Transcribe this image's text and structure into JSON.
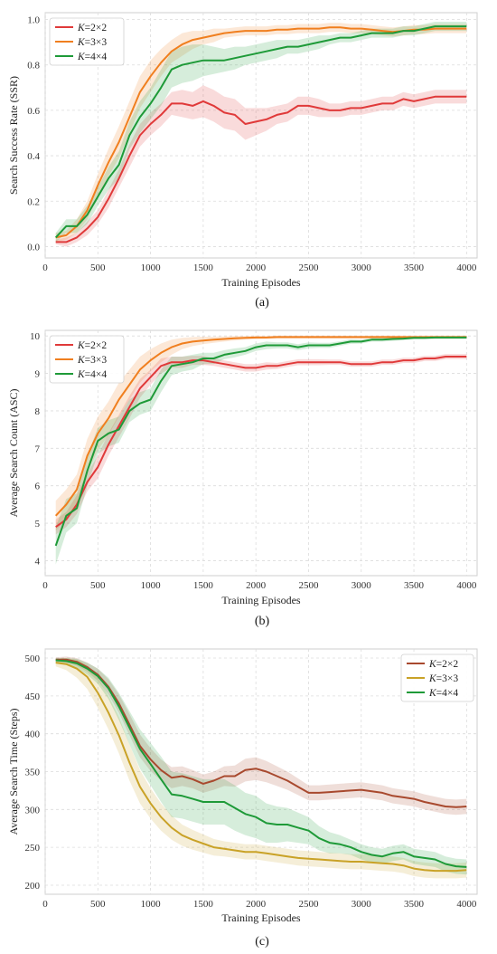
{
  "chart_data": [
    {
      "type": "line",
      "panel_label": "(a)",
      "xlabel": "Training Episodes",
      "ylabel": "Search Success Rate (SSR)",
      "xlim": [
        0,
        4100
      ],
      "ylim": [
        -0.05,
        1.03
      ],
      "xticks": [
        0,
        500,
        1000,
        1500,
        2000,
        2500,
        3000,
        3500,
        4000
      ],
      "yticks": [
        0.0,
        0.2,
        0.4,
        0.6,
        0.8,
        1.0
      ],
      "ytick_labels": [
        "0.0",
        "0.2",
        "0.4",
        "0.6",
        "0.8",
        "1.0"
      ],
      "grid": true,
      "legend_position": "top-left",
      "x": [
        100,
        200,
        300,
        400,
        500,
        600,
        700,
        800,
        900,
        1000,
        1100,
        1200,
        1300,
        1400,
        1500,
        1600,
        1700,
        1800,
        1900,
        2000,
        2100,
        2200,
        2300,
        2400,
        2500,
        2600,
        2700,
        2800,
        2900,
        3000,
        3100,
        3200,
        3300,
        3400,
        3500,
        3600,
        3700,
        3800,
        3900,
        4000
      ],
      "series": [
        {
          "name": "K=2×2",
          "k_label": "K",
          "k_value": "=2×2",
          "color": "#e03a3a",
          "values": [
            0.02,
            0.02,
            0.04,
            0.08,
            0.13,
            0.21,
            0.3,
            0.4,
            0.49,
            0.54,
            0.58,
            0.63,
            0.63,
            0.62,
            0.64,
            0.62,
            0.59,
            0.58,
            0.54,
            0.55,
            0.56,
            0.58,
            0.59,
            0.62,
            0.62,
            0.61,
            0.6,
            0.6,
            0.61,
            0.61,
            0.62,
            0.63,
            0.63,
            0.65,
            0.64,
            0.65,
            0.66,
            0.66,
            0.66,
            0.66
          ],
          "band": [
            0.01,
            0.02,
            0.02,
            0.03,
            0.03,
            0.04,
            0.04,
            0.05,
            0.05,
            0.05,
            0.05,
            0.05,
            0.06,
            0.06,
            0.07,
            0.07,
            0.07,
            0.07,
            0.07,
            0.06,
            0.05,
            0.04,
            0.04,
            0.04,
            0.04,
            0.04,
            0.03,
            0.03,
            0.03,
            0.03,
            0.03,
            0.03,
            0.03,
            0.03,
            0.03,
            0.03,
            0.03,
            0.03,
            0.03,
            0.03
          ]
        },
        {
          "name": "K=3×3",
          "k_label": "K",
          "k_value": "=3×3",
          "color": "#f07f1f",
          "values": [
            0.04,
            0.05,
            0.09,
            0.16,
            0.27,
            0.37,
            0.46,
            0.57,
            0.68,
            0.75,
            0.81,
            0.86,
            0.89,
            0.91,
            0.92,
            0.93,
            0.94,
            0.945,
            0.95,
            0.95,
            0.95,
            0.955,
            0.955,
            0.96,
            0.96,
            0.96,
            0.965,
            0.965,
            0.96,
            0.96,
            0.955,
            0.95,
            0.945,
            0.95,
            0.955,
            0.955,
            0.96,
            0.96,
            0.96,
            0.96
          ],
          "band": [
            0.02,
            0.02,
            0.03,
            0.04,
            0.05,
            0.06,
            0.07,
            0.07,
            0.07,
            0.07,
            0.06,
            0.05,
            0.05,
            0.04,
            0.03,
            0.03,
            0.02,
            0.02,
            0.02,
            0.02,
            0.02,
            0.02,
            0.02,
            0.02,
            0.02,
            0.02,
            0.02,
            0.02,
            0.02,
            0.02,
            0.02,
            0.02,
            0.02,
            0.02,
            0.02,
            0.02,
            0.02,
            0.02,
            0.02,
            0.02
          ]
        },
        {
          "name": "K=4×4",
          "k_label": "K",
          "k_value": "=4×4",
          "color": "#1e9a38",
          "values": [
            0.04,
            0.09,
            0.09,
            0.14,
            0.22,
            0.3,
            0.36,
            0.49,
            0.57,
            0.63,
            0.7,
            0.78,
            0.8,
            0.81,
            0.82,
            0.82,
            0.82,
            0.83,
            0.84,
            0.85,
            0.86,
            0.87,
            0.88,
            0.88,
            0.89,
            0.9,
            0.91,
            0.92,
            0.92,
            0.93,
            0.94,
            0.94,
            0.94,
            0.95,
            0.95,
            0.96,
            0.97,
            0.97,
            0.97,
            0.97
          ],
          "band": [
            0.02,
            0.03,
            0.03,
            0.04,
            0.04,
            0.05,
            0.06,
            0.06,
            0.07,
            0.07,
            0.08,
            0.08,
            0.08,
            0.08,
            0.07,
            0.06,
            0.05,
            0.05,
            0.04,
            0.04,
            0.04,
            0.04,
            0.03,
            0.03,
            0.03,
            0.03,
            0.02,
            0.02,
            0.02,
            0.02,
            0.02,
            0.02,
            0.02,
            0.02,
            0.02,
            0.02,
            0.02,
            0.02,
            0.02,
            0.02
          ]
        }
      ]
    },
    {
      "type": "line",
      "panel_label": "(b)",
      "xlabel": "Training Episodes",
      "ylabel": "Average Search Count (ASC)",
      "xlim": [
        0,
        4100
      ],
      "ylim": [
        3.6,
        10.15
      ],
      "xticks": [
        0,
        500,
        1000,
        1500,
        2000,
        2500,
        3000,
        3500,
        4000
      ],
      "yticks": [
        4,
        5,
        6,
        7,
        8,
        9,
        10
      ],
      "ytick_labels": [
        "4",
        "5",
        "6",
        "7",
        "8",
        "9",
        "10"
      ],
      "grid": true,
      "legend_position": "top-left",
      "x": [
        100,
        200,
        300,
        400,
        500,
        600,
        700,
        800,
        900,
        1000,
        1100,
        1200,
        1300,
        1400,
        1500,
        1600,
        1700,
        1800,
        1900,
        2000,
        2100,
        2200,
        2300,
        2400,
        2500,
        2600,
        2700,
        2800,
        2900,
        3000,
        3100,
        3200,
        3300,
        3400,
        3500,
        3600,
        3700,
        3800,
        3900,
        4000
      ],
      "series": [
        {
          "name": "K=2×2",
          "k_label": "K",
          "k_value": "=2×2",
          "color": "#e03a3a",
          "values": [
            4.9,
            5.1,
            5.5,
            6.1,
            6.5,
            7.1,
            7.6,
            8.1,
            8.6,
            8.9,
            9.2,
            9.3,
            9.3,
            9.35,
            9.35,
            9.3,
            9.25,
            9.2,
            9.15,
            9.15,
            9.2,
            9.2,
            9.25,
            9.3,
            9.3,
            9.3,
            9.3,
            9.3,
            9.25,
            9.25,
            9.25,
            9.3,
            9.3,
            9.35,
            9.35,
            9.4,
            9.4,
            9.45,
            9.45,
            9.45
          ],
          "band": [
            0.2,
            0.2,
            0.25,
            0.25,
            0.3,
            0.3,
            0.3,
            0.3,
            0.25,
            0.2,
            0.2,
            0.15,
            0.15,
            0.12,
            0.12,
            0.1,
            0.1,
            0.1,
            0.1,
            0.1,
            0.1,
            0.08,
            0.08,
            0.08,
            0.08,
            0.08,
            0.07,
            0.07,
            0.07,
            0.07,
            0.07,
            0.07,
            0.07,
            0.07,
            0.07,
            0.07,
            0.07,
            0.07,
            0.07,
            0.07
          ]
        },
        {
          "name": "K=3×3",
          "k_label": "K",
          "k_value": "=3×3",
          "color": "#f07f1f",
          "values": [
            5.2,
            5.5,
            5.9,
            6.8,
            7.4,
            7.8,
            8.3,
            8.7,
            9.1,
            9.35,
            9.55,
            9.7,
            9.8,
            9.85,
            9.88,
            9.9,
            9.92,
            9.94,
            9.95,
            9.96,
            9.96,
            9.97,
            9.97,
            9.97,
            9.97,
            9.97,
            9.97,
            9.97,
            9.97,
            9.97,
            9.97,
            9.97,
            9.97,
            9.97,
            9.97,
            9.97,
            9.97,
            9.97,
            9.97,
            9.97
          ],
          "band": [
            0.4,
            0.4,
            0.4,
            0.45,
            0.45,
            0.45,
            0.45,
            0.4,
            0.35,
            0.3,
            0.25,
            0.2,
            0.15,
            0.12,
            0.1,
            0.08,
            0.07,
            0.06,
            0.05,
            0.05,
            0.04,
            0.04,
            0.04,
            0.04,
            0.04,
            0.04,
            0.04,
            0.04,
            0.04,
            0.04,
            0.04,
            0.04,
            0.04,
            0.04,
            0.04,
            0.04,
            0.04,
            0.04,
            0.04,
            0.04
          ]
        },
        {
          "name": "K=4×4",
          "k_label": "K",
          "k_value": "=4×4",
          "color": "#1e9a38",
          "values": [
            4.4,
            5.2,
            5.4,
            6.4,
            7.2,
            7.4,
            7.5,
            8.0,
            8.2,
            8.3,
            8.8,
            9.2,
            9.25,
            9.3,
            9.4,
            9.4,
            9.5,
            9.55,
            9.6,
            9.7,
            9.75,
            9.75,
            9.75,
            9.7,
            9.75,
            9.75,
            9.75,
            9.8,
            9.85,
            9.85,
            9.9,
            9.9,
            9.92,
            9.93,
            9.95,
            9.95,
            9.96,
            9.96,
            9.96,
            9.96
          ],
          "band": [
            0.5,
            0.45,
            0.4,
            0.4,
            0.35,
            0.35,
            0.35,
            0.3,
            0.3,
            0.3,
            0.3,
            0.25,
            0.2,
            0.2,
            0.15,
            0.15,
            0.12,
            0.12,
            0.1,
            0.1,
            0.1,
            0.08,
            0.08,
            0.08,
            0.08,
            0.07,
            0.07,
            0.06,
            0.06,
            0.05,
            0.05,
            0.05,
            0.05,
            0.04,
            0.04,
            0.04,
            0.04,
            0.04,
            0.04,
            0.04
          ]
        }
      ]
    },
    {
      "type": "line",
      "panel_label": "(c)",
      "xlabel": "Training Episodes",
      "ylabel": "Average Search Time (Steps)",
      "xlim": [
        0,
        4100
      ],
      "ylim": [
        188,
        512
      ],
      "xticks": [
        0,
        500,
        1000,
        1500,
        2000,
        2500,
        3000,
        3500,
        4000
      ],
      "yticks": [
        200,
        250,
        300,
        350,
        400,
        450,
        500
      ],
      "ytick_labels": [
        "200",
        "250",
        "300",
        "350",
        "400",
        "450",
        "500"
      ],
      "grid": true,
      "legend_position": "top-right",
      "x": [
        100,
        200,
        300,
        400,
        500,
        600,
        700,
        800,
        900,
        1000,
        1100,
        1200,
        1300,
        1400,
        1500,
        1600,
        1700,
        1800,
        1900,
        2000,
        2100,
        2200,
        2300,
        2400,
        2500,
        2600,
        2700,
        2800,
        2900,
        3000,
        3100,
        3200,
        3300,
        3400,
        3500,
        3600,
        3700,
        3800,
        3900,
        4000
      ],
      "series": [
        {
          "name": "K=2×2",
          "k_label": "K",
          "k_value": "=2×2",
          "color": "#a8492e",
          "values": [
            498,
            498,
            495,
            488,
            478,
            462,
            440,
            412,
            384,
            366,
            352,
            342,
            344,
            340,
            334,
            338,
            344,
            344,
            352,
            354,
            350,
            344,
            338,
            330,
            322,
            322,
            323,
            324,
            325,
            326,
            324,
            322,
            318,
            316,
            314,
            310,
            307,
            304,
            303,
            304
          ],
          "band": [
            3,
            4,
            5,
            6,
            8,
            10,
            12,
            14,
            15,
            15,
            14,
            14,
            13,
            12,
            12,
            12,
            13,
            14,
            15,
            15,
            14,
            13,
            12,
            11,
            10,
            10,
            10,
            10,
            10,
            10,
            10,
            10,
            10,
            10,
            10,
            10,
            10,
            10,
            10,
            10
          ]
        },
        {
          "name": "K=3×3",
          "k_label": "K",
          "k_value": "=3×3",
          "color": "#c9a227",
          "values": [
            494,
            492,
            486,
            475,
            454,
            428,
            398,
            362,
            330,
            308,
            290,
            276,
            266,
            260,
            255,
            250,
            248,
            246,
            244,
            244,
            242,
            240,
            238,
            236,
            235,
            234,
            233,
            232,
            231,
            231,
            230,
            229,
            228,
            226,
            222,
            220,
            219,
            219,
            219,
            220
          ],
          "band": [
            5,
            8,
            12,
            16,
            20,
            22,
            24,
            24,
            22,
            20,
            18,
            16,
            14,
            13,
            12,
            11,
            10,
            10,
            10,
            10,
            10,
            10,
            10,
            10,
            10,
            10,
            10,
            10,
            10,
            10,
            10,
            10,
            10,
            10,
            10,
            10,
            10,
            10,
            10,
            10
          ]
        },
        {
          "name": "K=4×4",
          "k_label": "K",
          "k_value": "=4×4",
          "color": "#1e9a38",
          "values": [
            497,
            496,
            493,
            486,
            476,
            460,
            436,
            408,
            380,
            360,
            340,
            320,
            318,
            314,
            310,
            310,
            310,
            302,
            294,
            290,
            282,
            280,
            280,
            276,
            272,
            262,
            256,
            254,
            250,
            244,
            240,
            238,
            242,
            244,
            238,
            236,
            234,
            228,
            225,
            224
          ],
          "band": [
            3,
            4,
            6,
            8,
            10,
            14,
            18,
            22,
            26,
            28,
            30,
            30,
            30,
            30,
            30,
            30,
            30,
            30,
            28,
            28,
            26,
            24,
            22,
            20,
            18,
            16,
            14,
            12,
            10,
            10,
            10,
            10,
            10,
            10,
            10,
            10,
            10,
            10,
            10,
            10
          ]
        }
      ]
    }
  ]
}
